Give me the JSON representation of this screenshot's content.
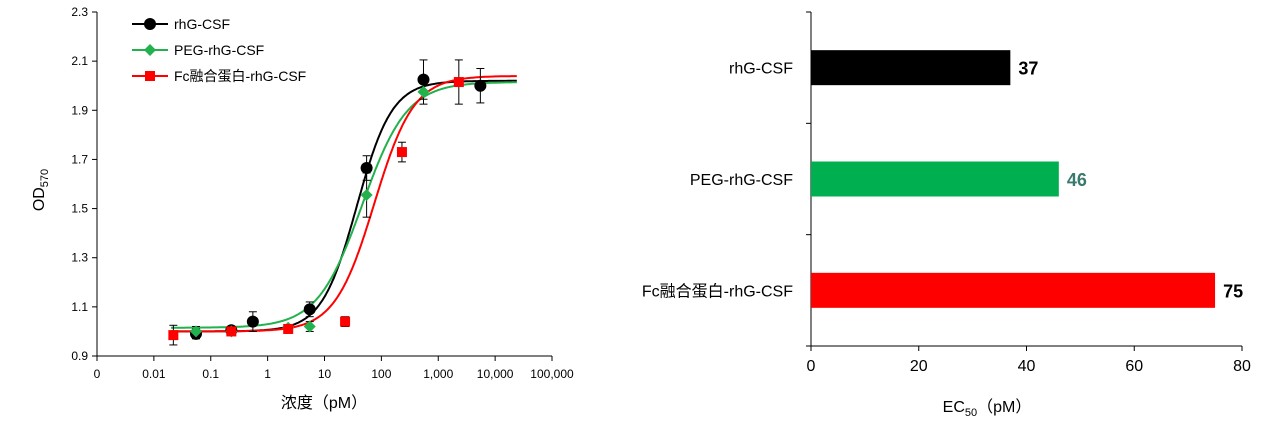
{
  "colors": {
    "rhg": "#000000",
    "peg": "#22b14c",
    "fc": "#ff0000",
    "bar_peg": "#00b050",
    "peg_value_label": "#3a7a6e"
  },
  "chart_data": [
    {
      "type": "scatter",
      "title": "",
      "xlabel": "浓度（pM）",
      "ylabel": "OD",
      "ylabel_sub": "570",
      "x_scale": "log",
      "x_ticks": [
        {
          "value": 0,
          "label": "0"
        },
        {
          "value": 0.01,
          "label": "0.01"
        },
        {
          "value": 0.1,
          "label": "0.1"
        },
        {
          "value": 1,
          "label": "1"
        },
        {
          "value": 10,
          "label": "10"
        },
        {
          "value": 100,
          "label": "100"
        },
        {
          "value": 1000,
          "label": "1,000"
        },
        {
          "value": 10000,
          "label": "10,000"
        },
        {
          "value": 100000,
          "label": "100,000"
        }
      ],
      "ylim": [
        0.9,
        2.3
      ],
      "y_ticks": [
        "0.9",
        "1.1",
        "1.3",
        "1.5",
        "1.7",
        "1.9",
        "2.1",
        "2.3"
      ],
      "grid": false,
      "legend_position": "top-left",
      "series": [
        {
          "name": "rhG-CSF",
          "color_key": "rhg",
          "marker": "circle",
          "points": [
            {
              "x": 0.055,
              "y": 0.99,
              "err": 0.02
            },
            {
              "x": 0.23,
              "y": 1.005,
              "err": 0.01
            },
            {
              "x": 0.55,
              "y": 1.04,
              "err": 0.04
            },
            {
              "x": 5.5,
              "y": 1.09,
              "err": 0.03
            },
            {
              "x": 55,
              "y": 1.665,
              "err": 0.05
            },
            {
              "x": 550,
              "y": 2.025,
              "err": 0.08
            },
            {
              "x": 5500,
              "y": 2.0,
              "err": 0.07
            }
          ],
          "fit": {
            "bottom": 1.0,
            "top": 2.02,
            "ec50": 37,
            "hill": 1.4
          }
        },
        {
          "name": "PEG-rhG-CSF",
          "color_key": "peg",
          "marker": "diamond",
          "points": [
            {
              "x": 0.055,
              "y": 1.0,
              "err": 0.02
            },
            {
              "x": 0.23,
              "y": 1.0,
              "err": 0.01
            },
            {
              "x": 2.3,
              "y": 1.015,
              "err": 0.01
            },
            {
              "x": 5.5,
              "y": 1.02,
              "err": 0.02
            },
            {
              "x": 55,
              "y": 1.555,
              "err": 0.09
            },
            {
              "x": 550,
              "y": 1.975,
              "err": 0.05
            }
          ],
          "fit": {
            "bottom": 1.015,
            "top": 2.015,
            "ec50": 46,
            "hill": 1.1
          }
        },
        {
          "name": "Fc融合蛋白-rhG-CSF",
          "color_key": "fc",
          "marker": "square",
          "points": [
            {
              "x": 0.022,
              "y": 0.985,
              "err": 0.04
            },
            {
              "x": 0.23,
              "y": 1.0,
              "err": 0.01
            },
            {
              "x": 2.3,
              "y": 1.01,
              "err": 0.01
            },
            {
              "x": 23,
              "y": 1.04,
              "err": 0.02
            },
            {
              "x": 230,
              "y": 1.73,
              "err": 0.04
            },
            {
              "x": 2300,
              "y": 2.015,
              "err": 0.09
            }
          ],
          "fit": {
            "bottom": 1.0,
            "top": 2.04,
            "ec50": 75,
            "hill": 1.25
          }
        }
      ]
    },
    {
      "type": "bar",
      "orientation": "horizontal",
      "title": "",
      "xlabel": "EC",
      "xlabel_sub": "50",
      "xlabel_unit": "（pM）",
      "xlim": [
        0,
        80
      ],
      "x_ticks": [
        "0",
        "20",
        "40",
        "60",
        "80"
      ],
      "grid": false,
      "categories": [
        "rhG-CSF",
        "PEG-rhG-CSF",
        "Fc融合蛋白-rhG-CSF"
      ],
      "values": [
        37,
        46,
        75
      ],
      "value_labels": [
        "37",
        "46",
        "75"
      ],
      "bar_color_keys": [
        "rhg",
        "bar_peg",
        "fc"
      ],
      "label_color_keys": [
        "rhg",
        "peg_value_label",
        "rhg"
      ]
    }
  ]
}
